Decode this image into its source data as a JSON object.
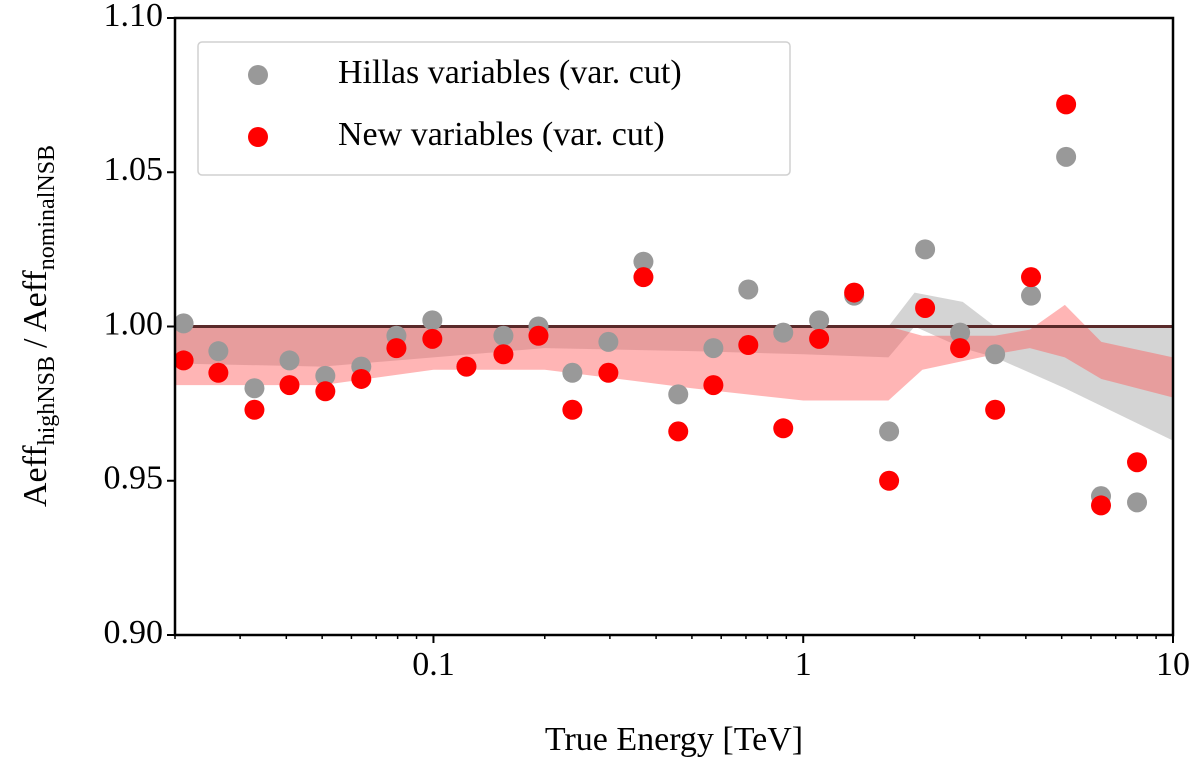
{
  "chart_data": {
    "type": "scatter",
    "xlabel": "True Energy [TeV]",
    "ylabel": [
      {
        "text": "Aeff"
      },
      {
        "text": "highNSB",
        "sub": true
      },
      {
        "text": "/ Aeff"
      },
      {
        "text": "nominalNSB",
        "sub": true
      }
    ],
    "xlog": true,
    "minor_ticks": true,
    "xlim": [
      0.02,
      10
    ],
    "xticks": [
      0.1,
      1,
      10
    ],
    "ylim": [
      0.9,
      1.1
    ],
    "yticks": [
      {
        "value": 0.9,
        "label": "0.90"
      },
      {
        "value": 0.95,
        "label": "0.95"
      },
      {
        "value": 1.0,
        "label": "1.00"
      },
      {
        "value": 1.05,
        "label": "1.05"
      },
      {
        "value": 1.1,
        "label": "1.10"
      }
    ],
    "reference_line": {
      "value": 1.0,
      "color": "#5a2a2a"
    },
    "legend": "upper left",
    "x": [
      0.0211,
      0.0262,
      0.0328,
      0.0408,
      0.051,
      0.0638,
      0.0794,
      0.0993,
      0.1228,
      0.1546,
      0.1923,
      0.2375,
      0.2972,
      0.3697,
      0.4592,
      0.5715,
      0.7103,
      0.883,
      1.104,
      1.373,
      1.707,
      2.136,
      2.656,
      3.304,
      4.131,
      5.14,
      6.387,
      7.993
    ],
    "series": [
      {
        "name": "Hillas variables (var. cut)",
        "color": "#999999",
        "values": [
          1.001,
          0.992,
          0.98,
          0.989,
          0.984,
          0.987,
          0.997,
          1.002,
          0.987,
          0.997,
          1.0,
          0.985,
          0.995,
          1.021,
          0.978,
          0.993,
          1.012,
          0.998,
          1.002,
          1.01,
          0.966,
          1.025,
          0.998,
          0.991,
          1.01,
          1.055,
          0.945,
          0.943
        ]
      },
      {
        "name": "New variables (var. cut)",
        "color": "#ff0000",
        "values": [
          0.989,
          0.985,
          0.973,
          0.981,
          0.979,
          0.983,
          0.993,
          0.996,
          0.987,
          0.991,
          0.997,
          0.973,
          0.985,
          1.016,
          0.966,
          0.981,
          0.994,
          0.967,
          0.996,
          1.011,
          0.95,
          1.006,
          0.993,
          0.973,
          1.016,
          1.072,
          0.942,
          0.956
        ]
      }
    ],
    "bands": [
      {
        "color": "rgba(160,160,160,0.45)",
        "x": [
          0.02,
          0.05,
          0.1,
          0.2,
          0.5,
          1,
          1.7,
          2.0,
          2.7,
          3.3,
          5.1,
          10
        ],
        "lower": [
          0.988,
          0.987,
          0.99,
          0.993,
          0.992,
          0.991,
          0.99,
          1.0,
          0.993,
          0.99,
          0.98,
          0.963
        ],
        "upper": [
          1.0,
          1.0,
          1.0,
          1.0,
          1.0,
          1.0,
          1.0,
          1.011,
          1.008,
          1.0,
          1.0,
          1.0
        ]
      },
      {
        "color": "rgba(255,90,90,0.45)",
        "x": [
          0.02,
          0.05,
          0.1,
          0.2,
          0.5,
          1,
          1.7,
          2.1,
          3.3,
          4.1,
          5.1,
          6.4,
          10
        ],
        "lower": [
          0.981,
          0.981,
          0.986,
          0.986,
          0.98,
          0.976,
          0.976,
          0.986,
          0.991,
          0.993,
          0.99,
          0.983,
          0.977
        ],
        "upper": [
          1.0,
          1.0,
          1.0,
          1.0,
          1.0,
          1.0,
          1.0,
          0.997,
          0.997,
          0.999,
          1.007,
          0.995,
          0.99
        ]
      }
    ]
  }
}
